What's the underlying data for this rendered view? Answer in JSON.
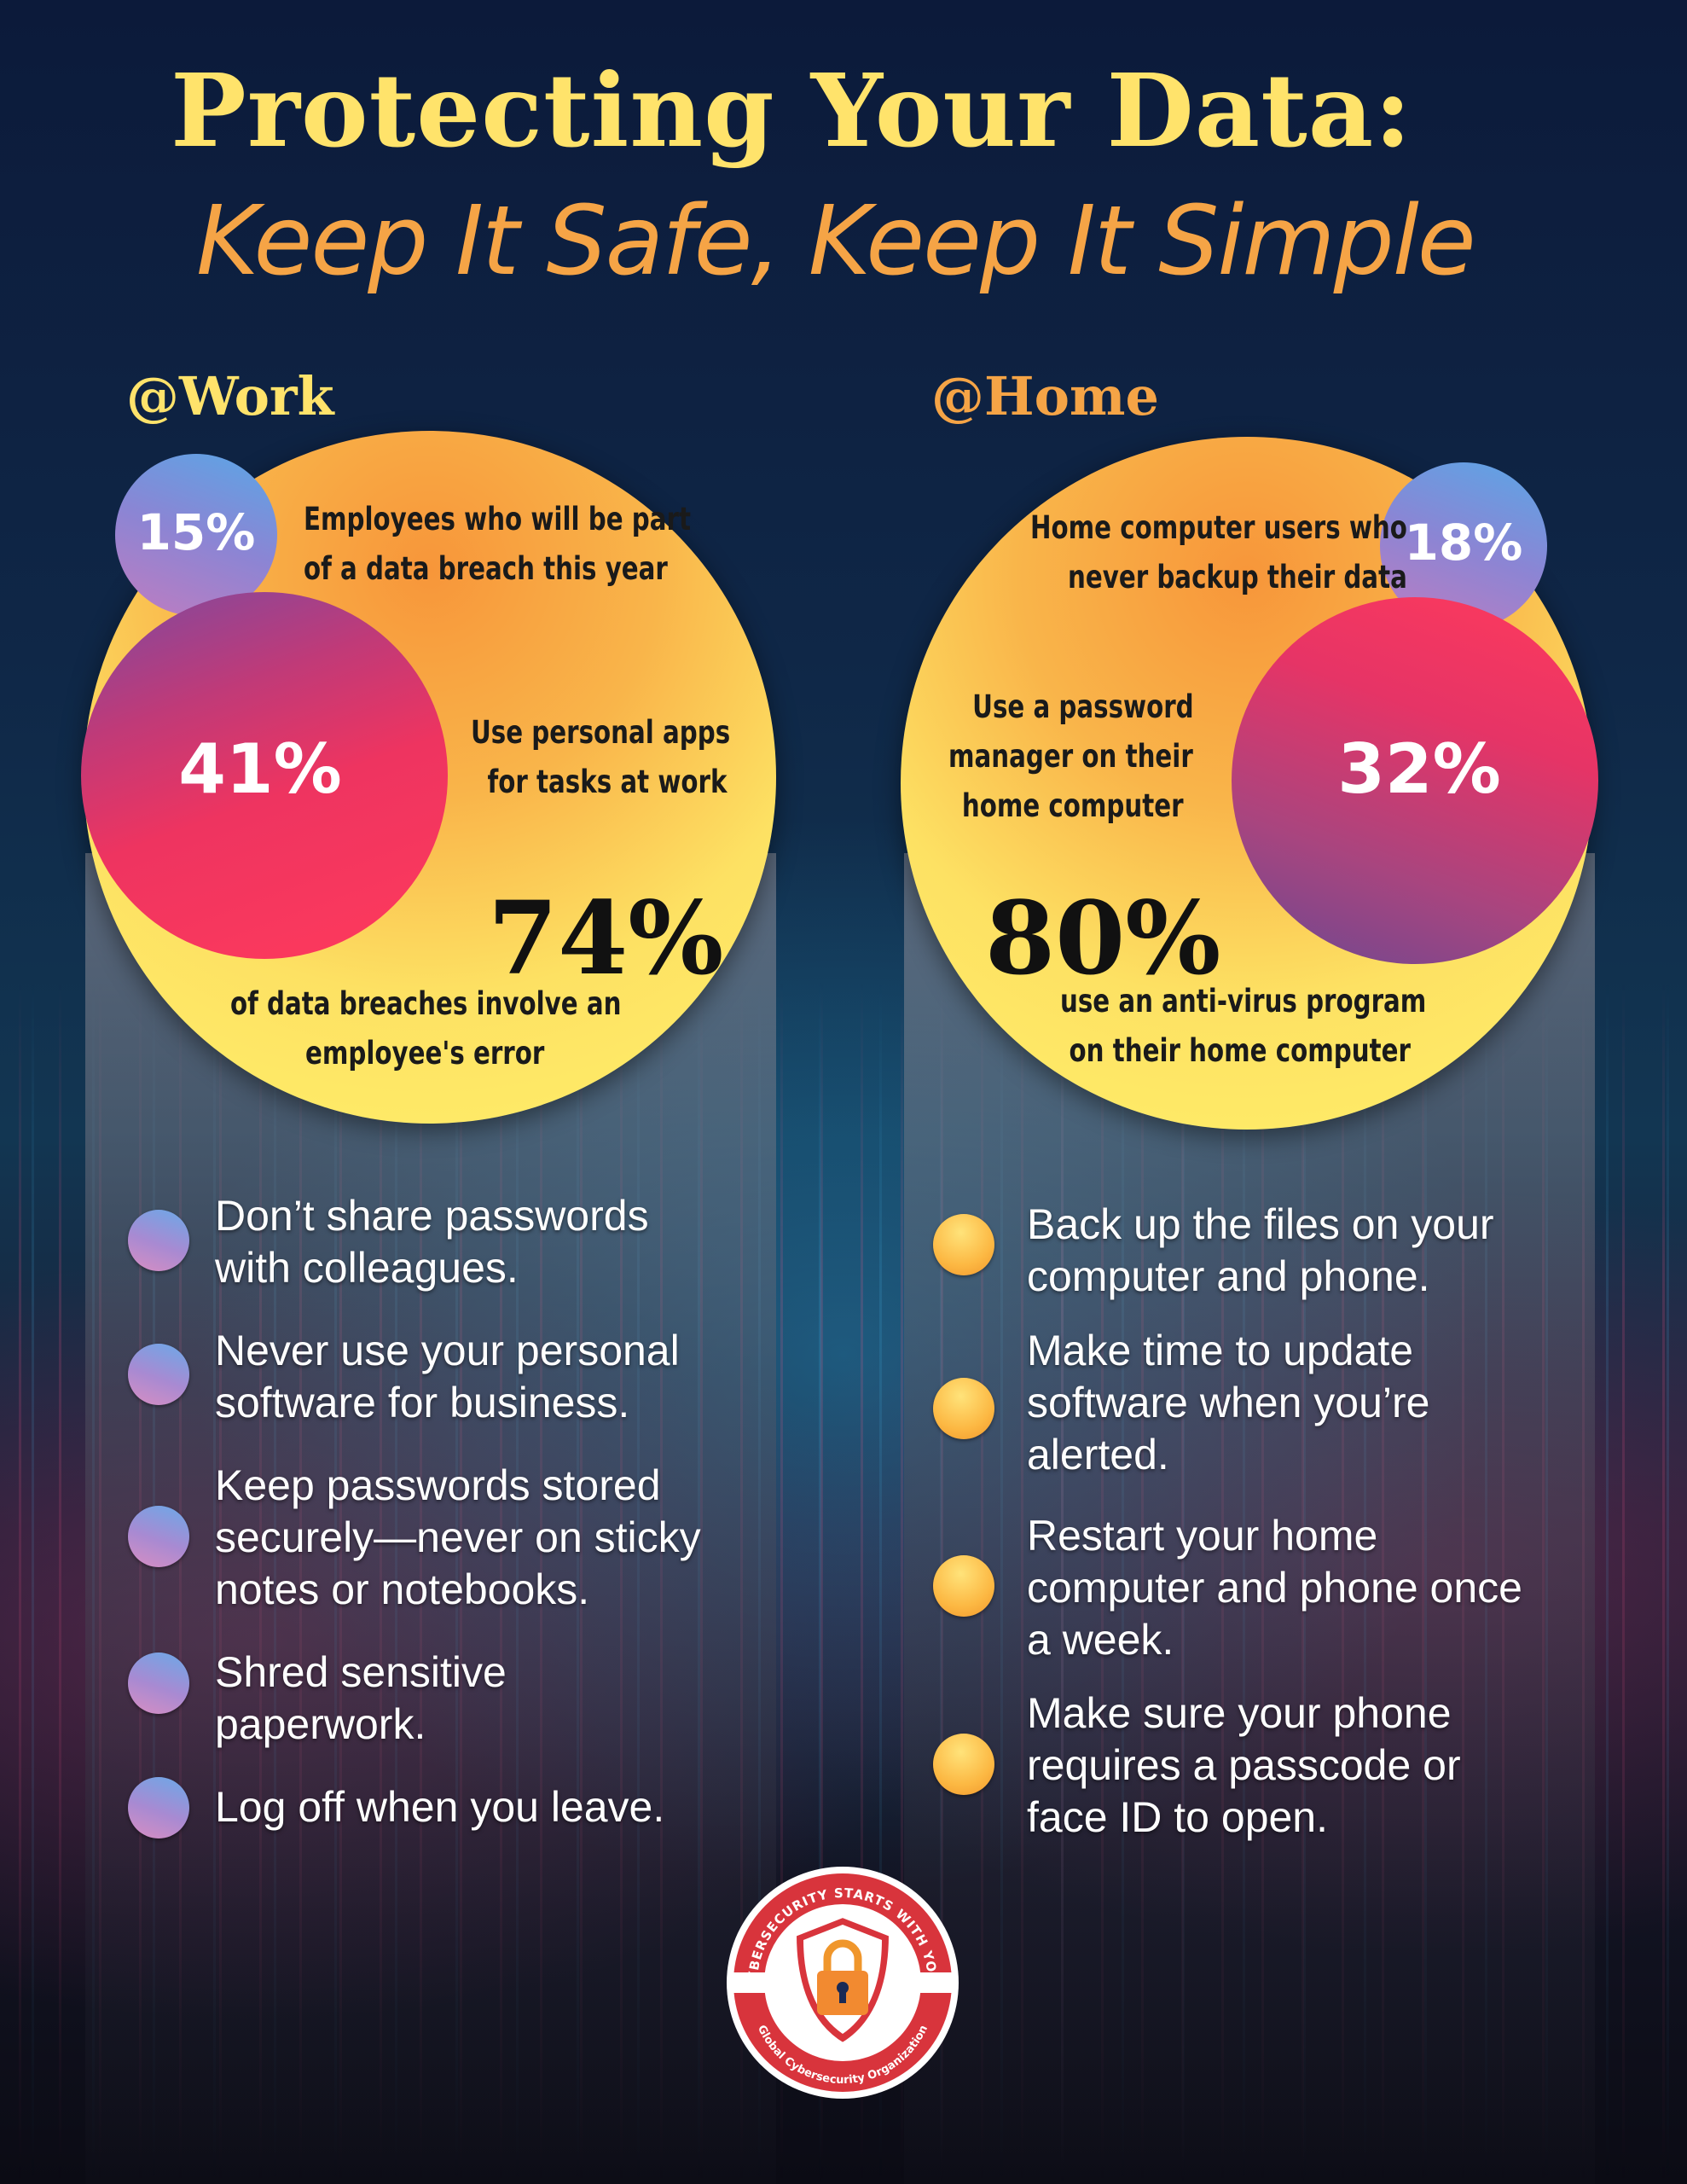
{
  "title": {
    "line1": "Protecting Your Data:",
    "line2": "Keep It Safe, Keep It Simple"
  },
  "work": {
    "heading": "@Work",
    "stat_small_pct": "15%",
    "stat_small_label": [
      "Employees who will be part",
      "of a data breach this year"
    ],
    "stat_mid_pct": "41%",
    "stat_mid_label": [
      "Use personal apps",
      "for tasks at work"
    ],
    "stat_big_pct": "74%",
    "stat_big_label": [
      "of data breaches involve an",
      "employee's error"
    ],
    "tips": [
      [
        "Don’t share passwords",
        "with colleagues."
      ],
      [
        "Never use your personal",
        "software for business."
      ],
      [
        "Keep passwords stored",
        "securely—never on sticky",
        "notes or notebooks."
      ],
      [
        "Shred sensitive",
        "paperwork."
      ],
      [
        "Log off when you leave."
      ]
    ]
  },
  "home": {
    "heading": "@Home",
    "stat_small_pct": "18%",
    "stat_small_label": [
      "Home computer users who",
      "never backup their data"
    ],
    "stat_mid_pct": "32%",
    "stat_mid_label": [
      "Use a password",
      "manager on their",
      "home computer"
    ],
    "stat_big_pct": "80%",
    "stat_big_label": [
      "use an anti-virus program",
      "on their home computer"
    ],
    "tips": [
      [
        "Back up the files on your",
        "computer and phone."
      ],
      [
        "Make time to update",
        "software when you’re",
        "alerted."
      ],
      [
        "Restart your home",
        "computer and phone once",
        "a week."
      ],
      [
        "Make sure your phone",
        "requires a passcode or",
        "face ID to open."
      ]
    ]
  },
  "badge": {
    "top_text": "CYBERSECURITY STARTS WITH YOU!",
    "bottom_text": "Global Cybersecurity Organization"
  },
  "colors": {
    "title_yellow": "#ffe36b",
    "title_orange": "#f5a446",
    "work_heading": "#ffe36b",
    "home_heading": "#f5a446",
    "badge_red": "#d8343c"
  }
}
